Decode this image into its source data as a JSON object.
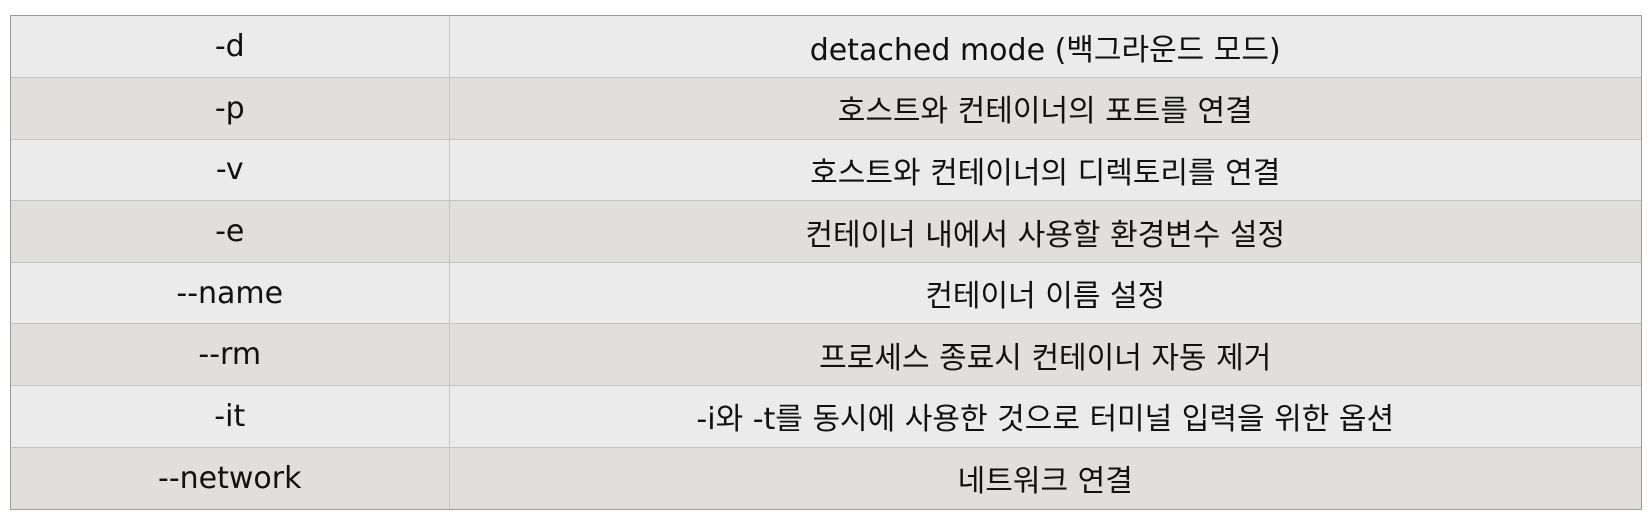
{
  "table": {
    "rows": [
      {
        "option": "-d",
        "description": "detached mode (백그라운드 모드)"
      },
      {
        "option": "-p",
        "description": "호스트와 컨테이너의 포트를 연결"
      },
      {
        "option": "-v",
        "description": "호스트와 컨테이너의 디렉토리를 연결"
      },
      {
        "option": "-e",
        "description": "컨테이너 내에서 사용할 환경변수 설정"
      },
      {
        "option": "--name",
        "description": "컨테이너 이름 설정"
      },
      {
        "option": "--rm",
        "description": "프로세스 종료시 컨테이너 자동 제거"
      },
      {
        "option": "-it",
        "description": "-i와 -t를 동시에 사용한 것으로 터미널 입력을 위한 옵션"
      },
      {
        "option": "--network",
        "description": "네트워크 연결"
      }
    ]
  },
  "colors": {
    "row_light": "#ebebeb",
    "row_dark": "#e0dfdb",
    "border": "#c4c4c4",
    "outer_border": "#9a9a9a",
    "text": "#111111"
  }
}
